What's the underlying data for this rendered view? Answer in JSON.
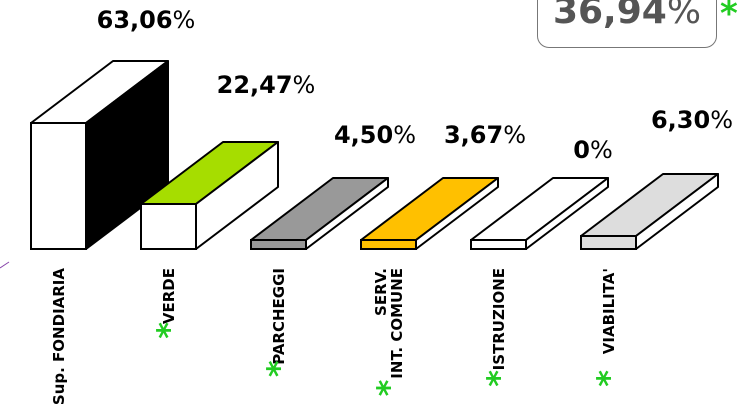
{
  "total_box": {
    "value": "36,94",
    "unit": "%",
    "asterisk": "*"
  },
  "colors": {
    "Sup. FONDIARIA": "#ffffff",
    "VERDE": "#a6dd00",
    "PARCHEGGI": "#999999",
    "SERV. INT. COMUNE": "#ffc000",
    "ISTRUZIONE": "#ffffff",
    "VIABILITA'": "#dddddd",
    "asterisk": "#22cc22"
  },
  "chart_data": {
    "type": "bar",
    "categories": [
      "Sup. FONDIARIA",
      "VERDE",
      "PARCHEGGI",
      "SERV. INT. COMUNE",
      "ISTRUZIONE",
      "VIABILITA'"
    ],
    "values": [
      63.06,
      22.47,
      4.5,
      3.67,
      0,
      6.3
    ],
    "value_labels": [
      "63,06",
      "22,47",
      "4,50",
      "3,67",
      "0",
      "6,30"
    ],
    "unit": "%",
    "category_lines": [
      [
        "Sup. FONDIARIA"
      ],
      [
        "VERDE"
      ],
      [
        "PARCHEGGI"
      ],
      [
        "SERV.",
        "INT. COMUNE"
      ],
      [
        "ISTRUZIONE"
      ],
      [
        "VIABILITA'"
      ]
    ],
    "asterisked": [
      false,
      true,
      true,
      true,
      true,
      true
    ],
    "style": "3d-bars"
  }
}
